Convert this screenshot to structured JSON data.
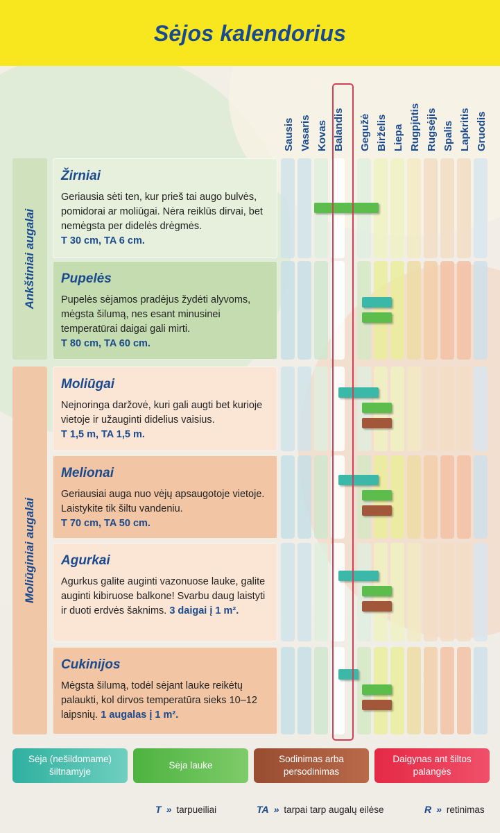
{
  "title": "Sėjos kalendorius",
  "months": [
    "Sausis",
    "Vasaris",
    "Kovas",
    "Balandis",
    "Gegužė",
    "Birželis",
    "Liepa",
    "Rugpjūtis",
    "Rugsėjis",
    "Spalis",
    "Lapkritis",
    "Gruodis"
  ],
  "active_month": "Balandis",
  "colors": {
    "header_yellow": "#f8e61e",
    "title_blue": "#1a4a8e",
    "highlight_red": "#d23f57",
    "greenhouse": "#3bb8a8",
    "outdoor": "#5cbd4c",
    "planting": "#a3573a",
    "windowsill": "#e8344e"
  },
  "sections": [
    {
      "label": "Ankštiniai augalai"
    },
    {
      "label": "Moliūginiai augalai"
    }
  ],
  "crops": [
    {
      "name": "Žirniai",
      "desc": "Geriausia sėti ten, kur prieš tai augo bulvės, pomidorai ar moliūgai. Nėra reiklūs dirvai, bet nemėgsta per didelės drėgmės.",
      "spacing": "T 30 cm, TA 6 cm.",
      "density": ""
    },
    {
      "name": "Pupelės",
      "desc": "Pupelės sėjamos pradėjus žydėti alyvoms, mėgsta šilumą, nes esant minusinei temperatūrai daigai gali mirti.",
      "spacing": "T 80 cm, TA 60 cm.",
      "density": ""
    },
    {
      "name": "Moliūgai",
      "desc": "Neįnoringa daržovė, kuri gali augti bet kurioje vietoje ir užauginti didelius vaisius.",
      "spacing": "T 1,5 m, TA 1,5 m.",
      "density": ""
    },
    {
      "name": "Melionai",
      "desc": "Geriausiai auga nuo vėjų apsaugotoje vietoje. Laistykite tik šiltu vandeniu.",
      "spacing": "T 70 cm, TA 50 cm.",
      "density": ""
    },
    {
      "name": "Agurkai",
      "desc": "Agurkus galite auginti vazonuose lauke, galite auginti kibiruose balkone! Svarbu daug laistyti ir duoti erdvės šaknims.",
      "spacing": "",
      "density": "3 daigai į 1 m²."
    },
    {
      "name": "Cukinijos",
      "desc": "Mėgsta šilumą, todėl sėjant lauke reikėtų palaukti, kol dirvos temperatūra sieks 10–12 laipsnių.",
      "spacing": "",
      "density": "1 augalas į 1 m²."
    }
  ],
  "legend": [
    {
      "label": "Sėja (nešildomame) šiltnamyje",
      "color": "#3bb8a8"
    },
    {
      "label": "Sėja lauke",
      "color": "#5cbd4c"
    },
    {
      "label": "Sodinimas arba persodinimas",
      "color": "#a3573a"
    },
    {
      "label": "Daigynas ant šiltos palangės",
      "color": "#e8344e"
    }
  ],
  "abbreviations": [
    {
      "key": "T",
      "label": "tarpueiliai"
    },
    {
      "key": "TA",
      "label": "tarpai tarp augalų eilėse"
    },
    {
      "key": "R",
      "label": "retinimas"
    }
  ],
  "chart_data": {
    "type": "table",
    "columns": [
      "Sausis",
      "Vasaris",
      "Kovas",
      "Balandis",
      "Gegužė",
      "Birželis",
      "Liepa",
      "Rugpjūtis",
      "Rugsėjis",
      "Spalis",
      "Lapkritis",
      "Gruodis"
    ],
    "rows": [
      {
        "crop": "Žirniai",
        "periods": [
          {
            "type": "Sėja lauke",
            "start": 2.0,
            "end": 5.3
          }
        ]
      },
      {
        "crop": "Pupelės",
        "periods": [
          {
            "type": "Sėja (nešildomame) šiltnamyje",
            "start": 4.3,
            "end": 6.1
          },
          {
            "type": "Sėja lauke",
            "start": 4.3,
            "end": 6.1
          }
        ]
      },
      {
        "crop": "Moliūgai",
        "periods": [
          {
            "type": "Sėja (nešildomame) šiltnamyje",
            "start": 3.3,
            "end": 5.3
          },
          {
            "type": "Sėja lauke",
            "start": 4.3,
            "end": 6.1
          },
          {
            "type": "Sodinimas arba persodinimas",
            "start": 4.3,
            "end": 6.1
          }
        ]
      },
      {
        "crop": "Melionai",
        "periods": [
          {
            "type": "Sėja (nešildomame) šiltnamyje",
            "start": 3.3,
            "end": 5.3
          },
          {
            "type": "Sėja lauke",
            "start": 4.3,
            "end": 6.1
          },
          {
            "type": "Sodinimas arba persodinimas",
            "start": 4.3,
            "end": 6.1
          }
        ]
      },
      {
        "crop": "Agurkai",
        "periods": [
          {
            "type": "Sėja (nešildomame) šiltnamyje",
            "start": 3.3,
            "end": 5.3
          },
          {
            "type": "Sėja lauke",
            "start": 4.3,
            "end": 6.1
          },
          {
            "type": "Sodinimas arba persodinimas",
            "start": 4.3,
            "end": 6.1
          }
        ]
      },
      {
        "crop": "Cukinijos",
        "periods": [
          {
            "type": "Sėja (nešildomame) šiltnamyje",
            "start": 3.3,
            "end": 4.1
          },
          {
            "type": "Sėja lauke",
            "start": 4.3,
            "end": 6.1
          },
          {
            "type": "Sodinimas arba persodinimas",
            "start": 4.3,
            "end": 6.1
          }
        ]
      }
    ]
  }
}
